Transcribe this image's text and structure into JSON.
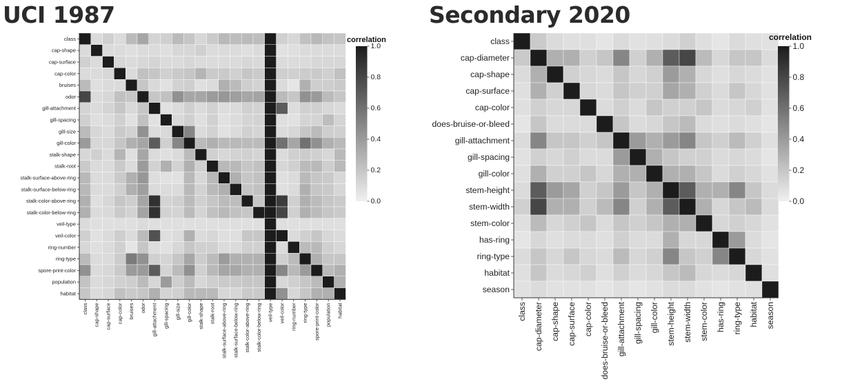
{
  "chart_data": [
    {
      "type": "heatmap",
      "title": "UCI 1987",
      "variables": [
        "class",
        "cap-shape",
        "cap-surface",
        "cap-color",
        "bruises",
        "odor",
        "gill-attachment",
        "gill-spacing",
        "gill-size",
        "gill-color",
        "stalk-shape",
        "stalk-root",
        "stalk-surface-above-ring",
        "stalk-surface-below-ring",
        "stalk-color-above-ring",
        "stalk-color-below-ring",
        "veil-type",
        "veil-color",
        "ring-number",
        "ring-type",
        "spore-print-color",
        "population",
        "habitat"
      ],
      "matrix": [
        [
          1.0,
          0.1,
          0.15,
          0.1,
          0.25,
          0.35,
          0.13,
          0.15,
          0.25,
          0.2,
          0.12,
          0.18,
          0.26,
          0.24,
          0.25,
          0.24,
          1.0,
          0.15,
          0.12,
          0.22,
          0.26,
          0.21,
          0.2
        ],
        [
          0.1,
          1.0,
          0.1,
          0.1,
          0.08,
          0.1,
          0.1,
          0.08,
          0.12,
          0.12,
          0.15,
          0.1,
          0.1,
          0.1,
          0.08,
          0.1,
          1.0,
          0.07,
          0.08,
          0.1,
          0.1,
          0.1,
          0.1
        ],
        [
          0.15,
          0.1,
          1.0,
          0.12,
          0.1,
          0.12,
          0.13,
          0.1,
          0.1,
          0.12,
          0.1,
          0.1,
          0.1,
          0.1,
          0.12,
          0.11,
          1.0,
          0.1,
          0.1,
          0.1,
          0.12,
          0.12,
          0.12
        ],
        [
          0.1,
          0.1,
          0.12,
          1.0,
          0.1,
          0.22,
          0.2,
          0.15,
          0.18,
          0.2,
          0.28,
          0.18,
          0.18,
          0.15,
          0.2,
          0.18,
          1.0,
          0.16,
          0.15,
          0.17,
          0.18,
          0.15,
          0.22
        ],
        [
          0.25,
          0.08,
          0.1,
          0.1,
          1.0,
          0.2,
          0.11,
          0.07,
          0.14,
          0.16,
          0.08,
          0.1,
          0.3,
          0.25,
          0.16,
          0.14,
          1.0,
          0.1,
          0.05,
          0.3,
          0.16,
          0.16,
          0.18
        ],
        [
          0.8,
          0.1,
          0.12,
          0.22,
          0.2,
          1.0,
          0.2,
          0.22,
          0.45,
          0.35,
          0.35,
          0.4,
          0.42,
          0.38,
          0.35,
          0.36,
          1.0,
          0.25,
          0.2,
          0.45,
          0.4,
          0.25,
          0.2
        ],
        [
          0.13,
          0.1,
          0.13,
          0.2,
          0.11,
          0.2,
          1.0,
          0.07,
          0.1,
          0.15,
          0.1,
          0.14,
          0.09,
          0.1,
          0.15,
          0.14,
          1.0,
          0.7,
          0.09,
          0.15,
          0.15,
          0.12,
          0.1
        ],
        [
          0.15,
          0.08,
          0.1,
          0.15,
          0.07,
          0.22,
          0.07,
          1.0,
          0.11,
          0.15,
          0.08,
          0.15,
          0.07,
          0.1,
          0.13,
          0.14,
          1.0,
          0.08,
          0.07,
          0.13,
          0.13,
          0.24,
          0.13
        ],
        [
          0.25,
          0.12,
          0.1,
          0.18,
          0.14,
          0.45,
          0.1,
          0.11,
          1.0,
          0.5,
          0.1,
          0.14,
          0.07,
          0.1,
          0.15,
          0.13,
          1.0,
          0.1,
          0.12,
          0.2,
          0.25,
          0.16,
          0.15
        ],
        [
          0.4,
          0.12,
          0.12,
          0.2,
          0.3,
          0.35,
          0.7,
          0.15,
          0.5,
          1.0,
          0.25,
          0.3,
          0.26,
          0.26,
          0.25,
          0.25,
          1.0,
          0.6,
          0.35,
          0.6,
          0.45,
          0.3,
          0.26
        ],
        [
          0.12,
          0.15,
          0.1,
          0.28,
          0.08,
          0.35,
          0.1,
          0.08,
          0.1,
          0.25,
          1.0,
          0.15,
          0.12,
          0.14,
          0.15,
          0.13,
          1.0,
          0.1,
          0.15,
          0.17,
          0.15,
          0.12,
          0.26
        ],
        [
          0.18,
          0.1,
          0.1,
          0.18,
          0.1,
          0.4,
          0.14,
          0.3,
          0.14,
          0.3,
          0.15,
          1.0,
          0.26,
          0.26,
          0.2,
          0.22,
          1.0,
          0.12,
          0.15,
          0.25,
          0.26,
          0.16,
          0.26
        ],
        [
          0.26,
          0.1,
          0.1,
          0.18,
          0.3,
          0.42,
          0.09,
          0.07,
          0.07,
          0.26,
          0.12,
          0.26,
          1.0,
          0.3,
          0.2,
          0.22,
          1.0,
          0.08,
          0.1,
          0.26,
          0.2,
          0.18,
          0.12
        ],
        [
          0.26,
          0.1,
          0.1,
          0.15,
          0.3,
          0.38,
          0.1,
          0.1,
          0.1,
          0.26,
          0.14,
          0.26,
          0.3,
          1.0,
          0.2,
          0.22,
          1.0,
          0.08,
          0.1,
          0.3,
          0.2,
          0.18,
          0.12
        ],
        [
          0.3,
          0.08,
          0.12,
          0.2,
          0.16,
          0.35,
          0.9,
          0.13,
          0.15,
          0.25,
          0.15,
          0.2,
          0.25,
          0.24,
          1.0,
          0.2,
          1.0,
          0.85,
          0.15,
          0.3,
          0.25,
          0.2,
          0.18
        ],
        [
          0.3,
          0.1,
          0.11,
          0.18,
          0.14,
          0.36,
          0.9,
          0.14,
          0.13,
          0.25,
          0.13,
          0.22,
          0.26,
          0.22,
          0.2,
          1.0,
          1.0,
          0.8,
          0.15,
          0.3,
          0.25,
          0.2,
          0.18
        ],
        [
          0.1,
          0.08,
          0.08,
          0.08,
          0.08,
          0.1,
          0.08,
          0.08,
          0.08,
          0.08,
          0.08,
          0.08,
          0.08,
          0.08,
          0.08,
          0.08,
          1.0,
          0.08,
          0.08,
          0.08,
          0.08,
          0.08,
          0.08
        ],
        [
          0.15,
          0.07,
          0.1,
          0.16,
          0.1,
          0.25,
          0.75,
          0.08,
          0.1,
          0.3,
          0.1,
          0.12,
          0.08,
          0.08,
          0.2,
          0.2,
          1.0,
          1.0,
          0.1,
          0.15,
          0.2,
          0.12,
          0.1
        ],
        [
          0.12,
          0.08,
          0.1,
          0.15,
          0.05,
          0.2,
          0.09,
          0.07,
          0.12,
          0.2,
          0.15,
          0.15,
          0.1,
          0.1,
          0.15,
          0.15,
          1.0,
          0.1,
          1.0,
          0.25,
          0.26,
          0.15,
          0.12
        ],
        [
          0.25,
          0.1,
          0.1,
          0.17,
          0.55,
          0.45,
          0.15,
          0.13,
          0.2,
          0.35,
          0.17,
          0.25,
          0.4,
          0.3,
          0.3,
          0.3,
          1.0,
          0.15,
          0.25,
          1.0,
          0.3,
          0.2,
          0.2
        ],
        [
          0.45,
          0.1,
          0.12,
          0.18,
          0.4,
          0.4,
          0.7,
          0.13,
          0.25,
          0.45,
          0.15,
          0.26,
          0.35,
          0.35,
          0.3,
          0.3,
          1.0,
          0.5,
          0.26,
          0.4,
          1.0,
          0.25,
          0.3
        ],
        [
          0.21,
          0.1,
          0.12,
          0.15,
          0.16,
          0.25,
          0.12,
          0.4,
          0.16,
          0.25,
          0.12,
          0.16,
          0.18,
          0.18,
          0.2,
          0.2,
          1.0,
          0.12,
          0.15,
          0.2,
          0.25,
          1.0,
          0.3
        ],
        [
          0.2,
          0.1,
          0.12,
          0.22,
          0.18,
          0.2,
          0.3,
          0.13,
          0.15,
          0.26,
          0.26,
          0.26,
          0.12,
          0.12,
          0.18,
          0.18,
          1.0,
          0.45,
          0.12,
          0.2,
          0.3,
          0.3,
          1.0
        ]
      ],
      "legend": {
        "title": "correlation",
        "ticks": [
          "1.0",
          "0.8",
          "0.6",
          "0.4",
          "0.2",
          "0.0"
        ],
        "range": [
          0,
          1
        ],
        "placement": "right"
      }
    },
    {
      "type": "heatmap",
      "title": "Secondary 2020",
      "variables": [
        "class",
        "cap-diameter",
        "cap-shape",
        "cap-surface",
        "cap-color",
        "does-bruise-or-bleed",
        "gill-attachment",
        "gill-spacing",
        "gill-color",
        "stem-height",
        "stem-width",
        "stem-color",
        "has-ring",
        "ring-type",
        "habitat",
        "season"
      ],
      "matrix": [
        [
          1.0,
          0.18,
          0.1,
          0.08,
          0.08,
          0.05,
          0.1,
          0.07,
          0.08,
          0.1,
          0.15,
          0.08,
          0.05,
          0.1,
          0.08,
          0.07
        ],
        [
          0.18,
          1.0,
          0.3,
          0.3,
          0.15,
          0.2,
          0.5,
          0.15,
          0.3,
          0.7,
          0.8,
          0.25,
          0.12,
          0.2,
          0.2,
          0.1
        ],
        [
          0.1,
          0.3,
          1.0,
          0.15,
          0.12,
          0.1,
          0.2,
          0.12,
          0.15,
          0.4,
          0.3,
          0.12,
          0.08,
          0.12,
          0.1,
          0.07
        ],
        [
          0.08,
          0.3,
          0.15,
          1.0,
          0.12,
          0.1,
          0.2,
          0.15,
          0.15,
          0.35,
          0.3,
          0.15,
          0.1,
          0.2,
          0.12,
          0.07
        ],
        [
          0.08,
          0.15,
          0.12,
          0.12,
          1.0,
          0.1,
          0.15,
          0.1,
          0.2,
          0.15,
          0.15,
          0.2,
          0.1,
          0.12,
          0.15,
          0.07
        ],
        [
          0.05,
          0.2,
          0.1,
          0.1,
          0.1,
          1.0,
          0.2,
          0.1,
          0.12,
          0.2,
          0.25,
          0.1,
          0.08,
          0.1,
          0.08,
          0.05
        ],
        [
          0.1,
          0.5,
          0.2,
          0.2,
          0.15,
          0.2,
          1.0,
          0.4,
          0.3,
          0.4,
          0.5,
          0.2,
          0.15,
          0.25,
          0.15,
          0.08
        ],
        [
          0.07,
          0.15,
          0.12,
          0.15,
          0.1,
          0.1,
          0.4,
          1.0,
          0.3,
          0.2,
          0.15,
          0.15,
          0.1,
          0.12,
          0.1,
          0.05
        ],
        [
          0.08,
          0.3,
          0.15,
          0.15,
          0.2,
          0.12,
          0.3,
          0.3,
          1.0,
          0.3,
          0.3,
          0.2,
          0.1,
          0.15,
          0.12,
          0.07
        ],
        [
          0.1,
          0.7,
          0.4,
          0.35,
          0.15,
          0.2,
          0.4,
          0.2,
          0.3,
          1.0,
          0.7,
          0.3,
          0.3,
          0.5,
          0.2,
          0.1
        ],
        [
          0.15,
          0.8,
          0.3,
          0.3,
          0.15,
          0.25,
          0.5,
          0.15,
          0.3,
          0.7,
          1.0,
          0.3,
          0.12,
          0.2,
          0.25,
          0.1
        ],
        [
          0.08,
          0.25,
          0.12,
          0.15,
          0.2,
          0.1,
          0.2,
          0.15,
          0.2,
          0.3,
          0.3,
          1.0,
          0.12,
          0.15,
          0.12,
          0.07
        ],
        [
          0.05,
          0.12,
          0.08,
          0.1,
          0.1,
          0.08,
          0.15,
          0.1,
          0.1,
          0.3,
          0.12,
          0.12,
          1.0,
          0.4,
          0.1,
          0.05
        ],
        [
          0.1,
          0.2,
          0.12,
          0.2,
          0.12,
          0.1,
          0.25,
          0.12,
          0.15,
          0.5,
          0.2,
          0.15,
          0.5,
          1.0,
          0.12,
          0.07
        ],
        [
          0.08,
          0.2,
          0.1,
          0.12,
          0.15,
          0.08,
          0.15,
          0.1,
          0.12,
          0.2,
          0.25,
          0.12,
          0.1,
          0.12,
          1.0,
          0.08
        ],
        [
          0.07,
          0.1,
          0.07,
          0.07,
          0.07,
          0.05,
          0.08,
          0.05,
          0.07,
          0.1,
          0.1,
          0.07,
          0.05,
          0.07,
          0.08,
          1.0
        ]
      ],
      "legend": {
        "title": "correlation",
        "ticks": [
          "1.0",
          "0.8",
          "0.6",
          "0.4",
          "0.2",
          "0.0"
        ],
        "range": [
          0,
          1
        ],
        "placement": "right"
      }
    }
  ]
}
